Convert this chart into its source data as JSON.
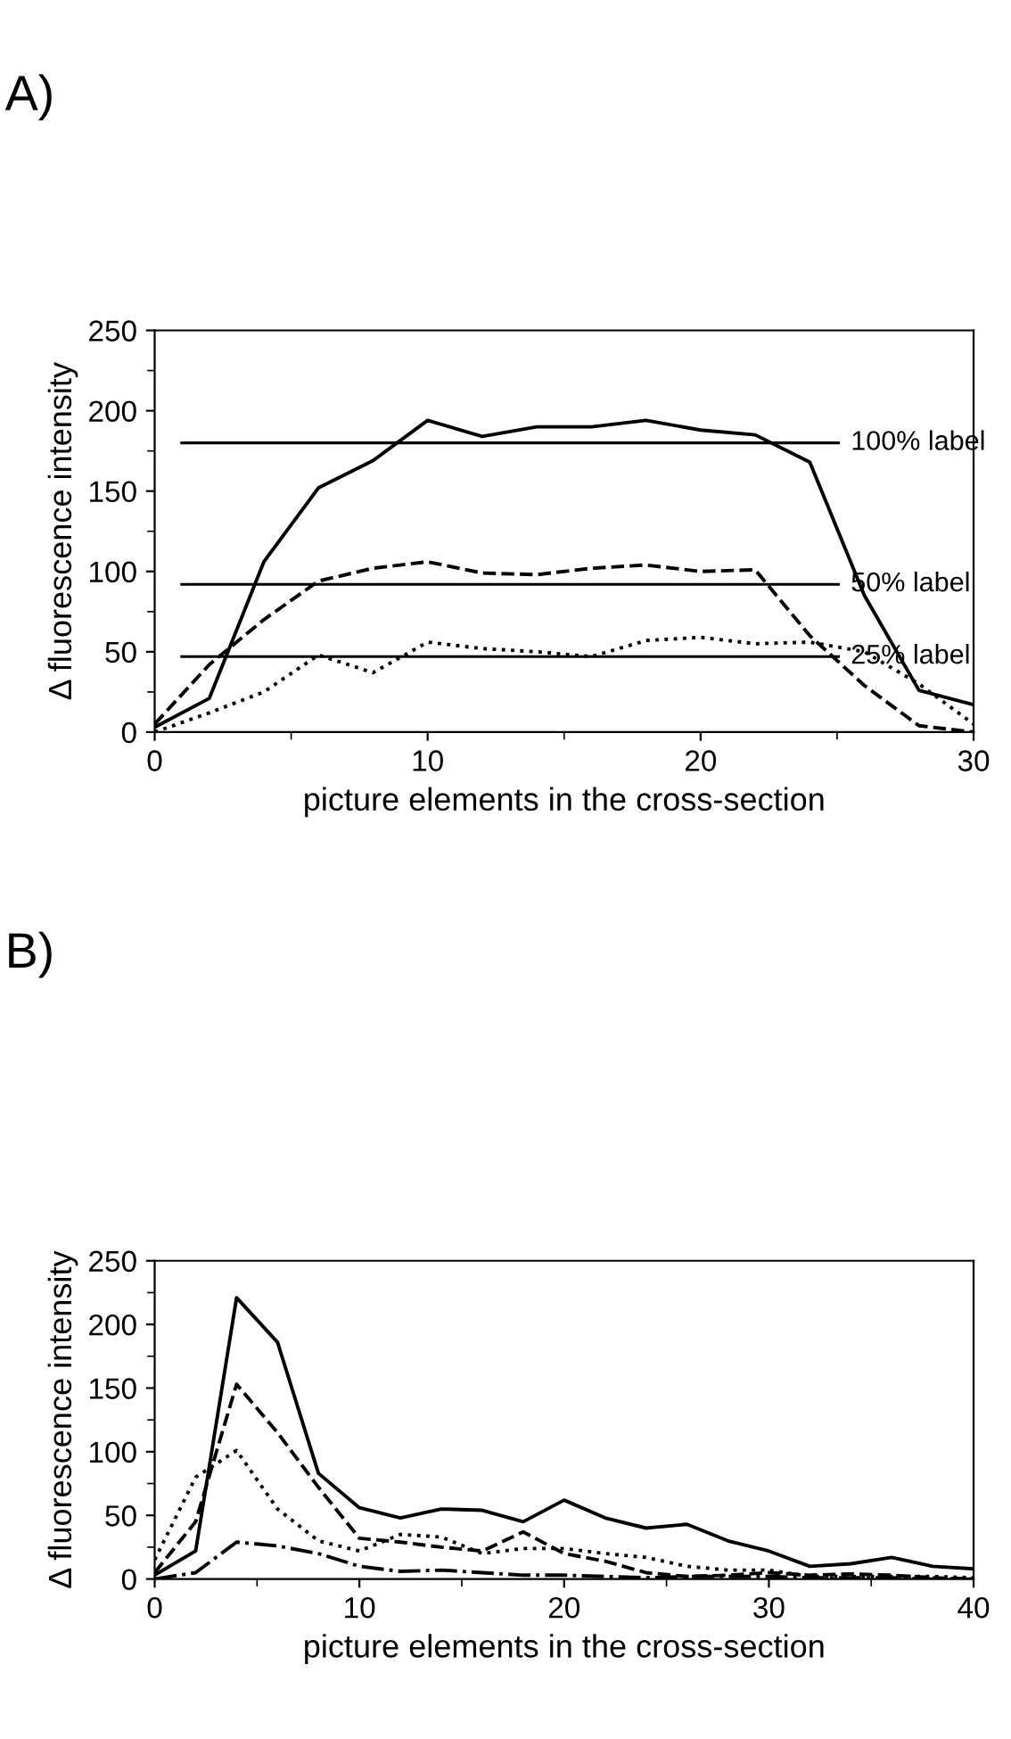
{
  "chart_data": [
    {
      "type": "line",
      "title": "A)",
      "xlabel": "picture elements in the cross-section",
      "ylabel": "Δ fluorescence intensity",
      "x": [
        0,
        2,
        4,
        6,
        8,
        10,
        12,
        14,
        16,
        18,
        20,
        22,
        24,
        26,
        28,
        30
      ],
      "xlim": [
        0,
        30
      ],
      "xticks": [
        0,
        10,
        20,
        30
      ],
      "ylim": [
        0,
        250
      ],
      "yticks": [
        0,
        50,
        100,
        150,
        200,
        250
      ],
      "grid": false,
      "legend": false,
      "marker": "none",
      "series": [
        {
          "color": "#000000",
          "line_style": "solid",
          "values": [
            3,
            21,
            106,
            152,
            169,
            194,
            184,
            190,
            190,
            194,
            188,
            185,
            168,
            85,
            26,
            17
          ]
        },
        {
          "color": "#000000",
          "line_style": "dashed",
          "values": [
            5,
            42,
            70,
            94,
            102,
            106,
            99,
            98,
            102,
            104,
            100,
            101,
            60,
            29,
            4,
            0
          ]
        },
        {
          "color": "#000000",
          "line_style": "dotted",
          "values": [
            0,
            12,
            25,
            48,
            37,
            56,
            52,
            50,
            47,
            57,
            59,
            55,
            56,
            50,
            30,
            5
          ]
        }
      ],
      "ref_lines": [
        {
          "axis": "y",
          "value": 180,
          "label": "100% label",
          "color": "#000000",
          "line_style": "solid"
        },
        {
          "axis": "y",
          "value": 92,
          "label": "50% label",
          "color": "#000000",
          "line_style": "solid"
        },
        {
          "axis": "y",
          "value": 47,
          "label": "25% label",
          "color": "#000000",
          "line_style": "solid"
        }
      ]
    },
    {
      "type": "line",
      "title": "B)",
      "xlabel": "picture elements in the cross-section",
      "ylabel": "Δ fluorescence intensity",
      "x": [
        0,
        2,
        4,
        6,
        8,
        10,
        12,
        14,
        16,
        18,
        20,
        22,
        24,
        26,
        28,
        30,
        32,
        34,
        36,
        38,
        40
      ],
      "xlim": [
        0,
        40
      ],
      "xticks": [
        0,
        10,
        20,
        30,
        40
      ],
      "ylim": [
        0,
        250
      ],
      "yticks": [
        0,
        50,
        100,
        150,
        200,
        250
      ],
      "grid": false,
      "legend": false,
      "marker": "none",
      "series": [
        {
          "color": "#000000",
          "line_style": "solid",
          "values": [
            3,
            22,
            221,
            186,
            83,
            56,
            48,
            55,
            54,
            45,
            62,
            48,
            40,
            43,
            30,
            22,
            10,
            12,
            17,
            10,
            8
          ]
        },
        {
          "color": "#000000",
          "line_style": "dashed",
          "values": [
            5,
            45,
            153,
            115,
            72,
            32,
            29,
            25,
            22,
            37,
            20,
            14,
            5,
            2,
            3,
            5,
            3,
            4,
            3,
            1,
            0
          ]
        },
        {
          "color": "#000000",
          "line_style": "dotted",
          "values": [
            15,
            80,
            101,
            55,
            30,
            22,
            35,
            33,
            20,
            24,
            24,
            20,
            17,
            10,
            7,
            7,
            2,
            2,
            2,
            2,
            1
          ]
        },
        {
          "color": "#000000",
          "line_style": "dashdot",
          "values": [
            0,
            5,
            29,
            26,
            20,
            10,
            6,
            7,
            5,
            3,
            3,
            2,
            1,
            2,
            2,
            2,
            1,
            1,
            1,
            0,
            0
          ]
        }
      ]
    }
  ]
}
